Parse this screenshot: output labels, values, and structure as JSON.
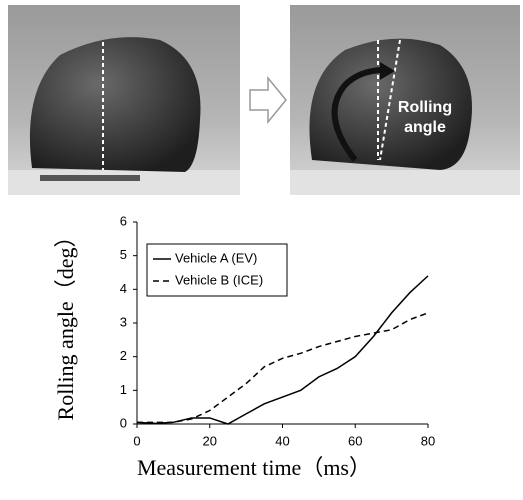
{
  "chart_data": {
    "type": "line",
    "x_label": "Measurement time（ms）",
    "y_label": "Rolling angle（deg）",
    "annotations": [
      "Rolling",
      "angle"
    ],
    "x": [
      0,
      5,
      10,
      15,
      20,
      25,
      30,
      35,
      40,
      45,
      50,
      55,
      60,
      65,
      70,
      75,
      80
    ],
    "series": [
      {
        "name": "Vehicle A (EV)",
        "color": "#000000",
        "dash": "solid",
        "values": [
          0.05,
          0.02,
          0.05,
          0.18,
          0.18,
          0,
          0.3,
          0.6,
          0.8,
          1.0,
          1.4,
          1.65,
          2.0,
          2.6,
          3.3,
          3.9,
          4.4
        ]
      },
      {
        "name": "Vehicle B (ICE)",
        "color": "#000000",
        "dash": "dashed",
        "values": [
          0.05,
          0.05,
          0.05,
          0.15,
          0.4,
          0.8,
          1.2,
          1.7,
          1.95,
          2.1,
          2.3,
          2.45,
          2.6,
          2.7,
          2.8,
          3.1,
          3.3
        ]
      }
    ],
    "xlim": [
      0,
      80
    ],
    "xticks": [
      0,
      20,
      40,
      60,
      80
    ],
    "ylim": [
      0,
      6
    ],
    "yticks": [
      0,
      1,
      2,
      3,
      4,
      5,
      6
    ],
    "grid": false,
    "legend": "upper-left"
  }
}
